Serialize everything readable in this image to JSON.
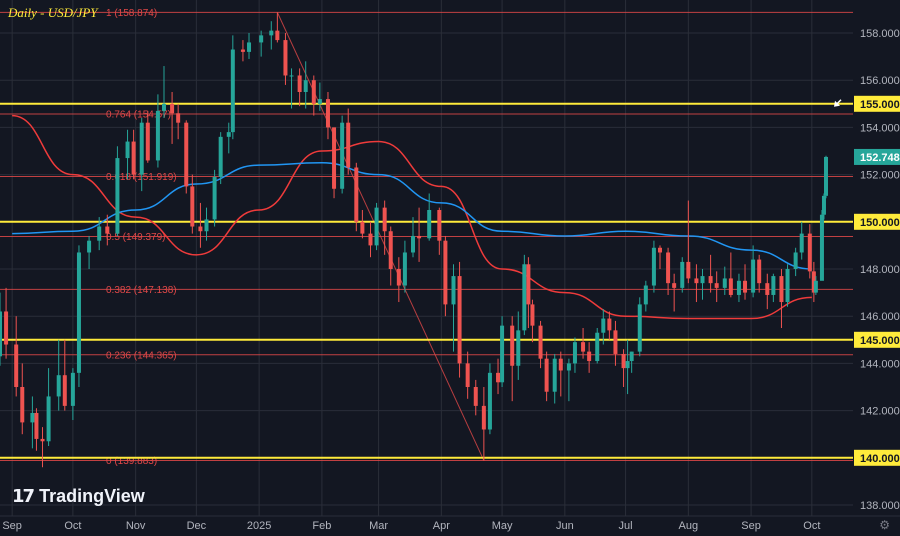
{
  "chart_title": "Daily - USD/JPY",
  "branding": {
    "logo_mark": "17",
    "logo_text": "TradingView"
  },
  "colors": {
    "background": "#131722",
    "grid": "#2a2e39",
    "up": "#26a69a",
    "down": "#ef5350",
    "fib": "#e04848",
    "key_level": "#ffeb3b",
    "ma_fast": "#2196f3",
    "ma_slow": "#ef3b3b",
    "axis_text": "#b2b5be",
    "last_price_bg": "#26a69a"
  },
  "chart_data": {
    "type": "candlestick",
    "symbol": "USD/JPY",
    "timeframe": "Daily",
    "ylim": [
      137.5,
      159.0
    ],
    "y_ticks": [
      138.0,
      140.0,
      142.0,
      144.0,
      146.0,
      148.0,
      150.0,
      152.0,
      154.0,
      156.0,
      158.0
    ],
    "y_tick_labels_hidden_by_markers": [
      140.0,
      150.0
    ],
    "x_tick_labels": [
      "Sep",
      "Oct",
      "Nov",
      "Dec",
      "2025",
      "Feb",
      "Mar",
      "Apr",
      "May",
      "Jun",
      "Jul",
      "Aug",
      "Sep",
      "Oct"
    ],
    "x_tick_dates": [
      "2024-09-01",
      "2024-10-01",
      "2024-11-01",
      "2024-12-01",
      "2025-01-01",
      "2025-02-01",
      "2025-03-01",
      "2025-04-01",
      "2025-05-01",
      "2025-06-01",
      "2025-07-01",
      "2025-08-01",
      "2025-09-01",
      "2025-10-01"
    ],
    "key_levels": [
      {
        "label": "155.000",
        "value": 155.0
      },
      {
        "label": "150.000",
        "value": 150.0
      },
      {
        "label": "145.000",
        "value": 145.0
      },
      {
        "label": "140.000",
        "value": 140.0
      }
    ],
    "last_price": {
      "label": "152.748",
      "value": 152.748
    },
    "fibonacci": [
      {
        "label": "1 (158.874)",
        "value": 158.874
      },
      {
        "label": "0.764 (154.57)",
        "value": 154.57
      },
      {
        "label": "0.618 (151.919)",
        "value": 151.919
      },
      {
        "label": "0.5 (149.379)",
        "value": 149.379
      },
      {
        "label": "0.382 (147.138)",
        "value": 147.138
      },
      {
        "label": "0.236 (144.365)",
        "value": 144.365
      },
      {
        "label": "0 (139.883)",
        "value": 139.883
      }
    ],
    "fib_trendline": {
      "from": {
        "date": "2025-01-10",
        "value": 158.874
      },
      "to": {
        "date": "2025-04-22",
        "value": 139.883
      }
    },
    "moving_average_fast": [
      [
        "2024-09-01",
        149.5
      ],
      [
        "2024-10-01",
        149.6
      ],
      [
        "2024-11-01",
        150.5
      ],
      [
        "2024-12-01",
        151.6
      ],
      [
        "2025-01-01",
        152.4
      ],
      [
        "2025-02-01",
        152.5
      ],
      [
        "2025-03-01",
        152.0
      ],
      [
        "2025-04-01",
        150.8
      ],
      [
        "2025-05-01",
        149.6
      ],
      [
        "2025-06-01",
        149.4
      ],
      [
        "2025-07-01",
        149.6
      ],
      [
        "2025-08-01",
        149.4
      ],
      [
        "2025-09-01",
        148.8
      ],
      [
        "2025-10-01",
        148.0
      ]
    ],
    "moving_average_slow": [
      [
        "2024-09-01",
        154.5
      ],
      [
        "2024-10-01",
        152.0
      ],
      [
        "2024-11-01",
        150.2
      ],
      [
        "2024-12-01",
        148.6
      ],
      [
        "2025-01-01",
        150.5
      ],
      [
        "2025-02-01",
        153.0
      ],
      [
        "2025-03-01",
        153.4
      ],
      [
        "2025-04-01",
        151.5
      ],
      [
        "2025-05-01",
        148.0
      ],
      [
        "2025-06-01",
        147.0
      ],
      [
        "2025-07-01",
        146.0
      ],
      [
        "2025-08-01",
        145.9
      ],
      [
        "2025-09-01",
        145.9
      ],
      [
        "2025-10-01",
        146.8
      ]
    ],
    "candles_ohlc_date_o_h_l_c": [
      [
        "2024-08-26",
        144.3,
        147.0,
        143.9,
        146.2
      ],
      [
        "2024-08-29",
        146.2,
        147.2,
        144.2,
        144.8
      ],
      [
        "2024-09-03",
        144.8,
        146.0,
        142.6,
        143.0
      ],
      [
        "2024-09-06",
        143.0,
        144.0,
        141.0,
        141.5
      ],
      [
        "2024-09-11",
        141.5,
        142.6,
        140.4,
        141.9
      ],
      [
        "2024-09-13",
        141.9,
        142.1,
        140.3,
        140.8
      ],
      [
        "2024-09-16",
        140.8,
        141.3,
        139.6,
        140.7
      ],
      [
        "2024-09-19",
        140.7,
        143.8,
        140.5,
        142.6
      ],
      [
        "2024-09-24",
        142.6,
        145.0,
        142.0,
        143.5
      ],
      [
        "2024-09-27",
        143.5,
        145.0,
        142.0,
        142.2
      ],
      [
        "2024-10-01",
        142.2,
        143.8,
        141.6,
        143.6
      ],
      [
        "2024-10-04",
        143.6,
        149.0,
        143.0,
        148.7
      ],
      [
        "2024-10-09",
        148.7,
        149.4,
        148.0,
        149.2
      ],
      [
        "2024-10-14",
        149.2,
        150.2,
        148.8,
        149.8
      ],
      [
        "2024-10-18",
        149.8,
        150.3,
        149.0,
        149.5
      ],
      [
        "2024-10-23",
        149.5,
        153.2,
        149.4,
        152.7
      ],
      [
        "2024-10-28",
        152.7,
        153.9,
        151.8,
        153.4
      ],
      [
        "2024-10-31",
        153.4,
        153.9,
        151.8,
        152.0
      ],
      [
        "2024-11-04",
        152.0,
        154.4,
        151.3,
        154.2
      ],
      [
        "2024-11-07",
        154.2,
        154.7,
        152.5,
        152.6
      ],
      [
        "2024-11-12",
        152.6,
        155.4,
        152.3,
        154.7
      ],
      [
        "2024-11-15",
        154.7,
        156.6,
        154.4,
        155.0
      ],
      [
        "2024-11-19",
        155.0,
        155.5,
        153.3,
        154.6
      ],
      [
        "2024-11-22",
        154.6,
        155.0,
        153.5,
        154.2
      ],
      [
        "2024-11-26",
        154.2,
        154.3,
        151.2,
        151.5
      ],
      [
        "2024-11-29",
        151.5,
        152.0,
        149.5,
        149.8
      ],
      [
        "2024-12-03",
        149.8,
        150.8,
        148.9,
        149.6
      ],
      [
        "2024-12-06",
        149.6,
        150.6,
        149.2,
        150.1
      ],
      [
        "2024-12-10",
        150.1,
        152.2,
        149.8,
        151.9
      ],
      [
        "2024-12-13",
        151.9,
        153.8,
        151.6,
        153.6
      ],
      [
        "2024-12-17",
        153.6,
        154.2,
        152.9,
        153.8
      ],
      [
        "2024-12-19",
        153.8,
        157.9,
        153.5,
        157.3
      ],
      [
        "2024-12-24",
        157.3,
        157.7,
        156.8,
        157.2
      ],
      [
        "2024-12-27",
        157.2,
        158.0,
        156.9,
        157.6
      ],
      [
        "2025-01-02",
        157.6,
        158.1,
        157.0,
        157.9
      ],
      [
        "2025-01-07",
        157.9,
        158.5,
        157.3,
        158.1
      ],
      [
        "2025-01-10",
        158.1,
        158.874,
        157.6,
        157.7
      ],
      [
        "2025-01-14",
        157.7,
        158.0,
        155.8,
        156.2
      ],
      [
        "2025-01-17",
        156.2,
        156.5,
        154.8,
        156.2
      ],
      [
        "2025-01-21",
        156.2,
        156.5,
        154.9,
        155.5
      ],
      [
        "2025-01-24",
        155.5,
        156.8,
        154.8,
        156.0
      ],
      [
        "2025-01-28",
        156.0,
        156.2,
        154.5,
        155.0
      ],
      [
        "2025-01-31",
        155.0,
        155.9,
        154.7,
        155.2
      ],
      [
        "2025-02-04",
        155.2,
        155.5,
        153.5,
        154.0
      ],
      [
        "2025-02-07",
        154.0,
        154.0,
        151.0,
        151.4
      ],
      [
        "2025-02-11",
        151.4,
        154.5,
        151.2,
        154.2
      ],
      [
        "2025-02-14",
        154.2,
        154.8,
        152.0,
        152.3
      ],
      [
        "2025-02-18",
        152.3,
        152.5,
        149.6,
        150.0
      ],
      [
        "2025-02-21",
        150.0,
        150.5,
        149.3,
        149.5
      ],
      [
        "2025-02-25",
        149.5,
        150.0,
        148.5,
        149.0
      ],
      [
        "2025-02-28",
        149.0,
        150.8,
        148.8,
        150.6
      ],
      [
        "2025-03-04",
        150.6,
        150.9,
        148.6,
        149.6
      ],
      [
        "2025-03-07",
        149.6,
        149.8,
        147.3,
        148.0
      ],
      [
        "2025-03-11",
        148.0,
        148.5,
        146.6,
        147.3
      ],
      [
        "2025-03-14",
        147.3,
        149.2,
        147.0,
        148.7
      ],
      [
        "2025-03-18",
        148.7,
        150.2,
        148.5,
        149.4
      ],
      [
        "2025-03-21",
        149.4,
        150.6,
        148.3,
        149.3
      ],
      [
        "2025-03-26",
        149.3,
        151.2,
        149.2,
        150.5
      ],
      [
        "2025-03-31",
        150.5,
        150.6,
        148.6,
        149.2
      ],
      [
        "2025-04-03",
        149.2,
        149.4,
        146.0,
        146.5
      ],
      [
        "2025-04-07",
        146.5,
        148.2,
        144.5,
        147.7
      ],
      [
        "2025-04-10",
        147.7,
        148.3,
        143.4,
        144.0
      ],
      [
        "2025-04-14",
        144.0,
        144.5,
        142.5,
        143.0
      ],
      [
        "2025-04-18",
        143.0,
        143.3,
        141.8,
        142.2
      ],
      [
        "2025-04-22",
        142.2,
        143.0,
        139.883,
        141.2
      ],
      [
        "2025-04-25",
        141.2,
        144.0,
        141.0,
        143.6
      ],
      [
        "2025-04-29",
        143.6,
        144.2,
        142.7,
        143.2
      ],
      [
        "2025-05-01",
        143.2,
        146.0,
        143.0,
        145.6
      ],
      [
        "2025-05-06",
        145.6,
        146.0,
        142.4,
        143.9
      ],
      [
        "2025-05-09",
        143.9,
        146.2,
        143.3,
        145.4
      ],
      [
        "2025-05-12",
        145.4,
        148.6,
        145.2,
        148.2
      ],
      [
        "2025-05-14",
        148.2,
        148.5,
        145.5,
        146.5
      ],
      [
        "2025-05-16",
        146.5,
        146.7,
        144.9,
        145.6
      ],
      [
        "2025-05-20",
        145.6,
        145.8,
        143.8,
        144.2
      ],
      [
        "2025-05-23",
        144.2,
        144.5,
        142.4,
        142.8
      ],
      [
        "2025-05-27",
        142.8,
        144.4,
        142.3,
        144.2
      ],
      [
        "2025-05-30",
        144.2,
        144.5,
        142.6,
        143.7
      ],
      [
        "2025-06-03",
        143.7,
        144.2,
        142.4,
        144.0
      ],
      [
        "2025-06-06",
        144.0,
        145.1,
        143.6,
        144.9
      ],
      [
        "2025-06-10",
        144.9,
        145.5,
        144.2,
        144.5
      ],
      [
        "2025-06-13",
        144.5,
        144.9,
        143.6,
        144.1
      ],
      [
        "2025-06-17",
        144.1,
        145.5,
        144.0,
        145.3
      ],
      [
        "2025-06-20",
        145.3,
        146.3,
        144.8,
        145.9
      ],
      [
        "2025-06-23",
        145.9,
        146.2,
        145.0,
        145.4
      ],
      [
        "2025-06-26",
        145.4,
        145.8,
        143.9,
        144.4
      ],
      [
        "2025-06-30",
        144.4,
        144.6,
        143.0,
        143.8
      ],
      [
        "2025-07-02",
        143.8,
        145.0,
        142.7,
        144.1
      ],
      [
        "2025-07-04",
        144.1,
        144.5,
        143.6,
        144.5
      ],
      [
        "2025-07-08",
        144.5,
        146.8,
        144.3,
        146.5
      ],
      [
        "2025-07-11",
        146.5,
        147.5,
        146.2,
        147.3
      ],
      [
        "2025-07-15",
        147.3,
        149.2,
        147.0,
        148.9
      ],
      [
        "2025-07-18",
        148.9,
        149.0,
        148.0,
        148.7
      ],
      [
        "2025-07-22",
        148.7,
        148.9,
        146.9,
        147.4
      ],
      [
        "2025-07-25",
        147.4,
        147.8,
        146.2,
        147.2
      ],
      [
        "2025-07-29",
        147.2,
        148.5,
        147.0,
        148.3
      ],
      [
        "2025-08-01",
        148.3,
        150.9,
        147.4,
        147.6
      ],
      [
        "2025-08-05",
        147.6,
        148.2,
        146.6,
        147.4
      ],
      [
        "2025-08-08",
        147.4,
        148.0,
        146.7,
        147.7
      ],
      [
        "2025-08-12",
        147.7,
        148.6,
        147.0,
        147.4
      ],
      [
        "2025-08-15",
        147.4,
        147.9,
        146.6,
        147.2
      ],
      [
        "2025-08-19",
        147.2,
        148.1,
        146.9,
        147.6
      ],
      [
        "2025-08-22",
        147.6,
        148.7,
        146.8,
        146.9
      ],
      [
        "2025-08-26",
        146.9,
        147.8,
        146.6,
        147.5
      ],
      [
        "2025-08-29",
        147.5,
        148.2,
        146.7,
        147.0
      ],
      [
        "2025-09-02",
        147.0,
        149.0,
        146.8,
        148.4
      ],
      [
        "2025-09-05",
        148.4,
        148.6,
        147.0,
        147.4
      ],
      [
        "2025-09-09",
        147.4,
        147.8,
        146.3,
        146.9
      ],
      [
        "2025-09-12",
        146.9,
        147.8,
        146.6,
        147.7
      ],
      [
        "2025-09-16",
        147.7,
        148.0,
        145.5,
        146.6
      ],
      [
        "2025-09-19",
        146.6,
        148.2,
        146.4,
        148.0
      ],
      [
        "2025-09-23",
        148.0,
        148.9,
        147.7,
        148.7
      ],
      [
        "2025-09-26",
        148.7,
        150.0,
        148.4,
        149.5
      ],
      [
        "2025-09-30",
        149.5,
        149.9,
        147.6,
        147.9
      ],
      [
        "2025-10-02",
        147.9,
        148.3,
        146.6,
        147.0
      ],
      [
        "2025-10-03",
        147.0,
        147.7,
        146.9,
        147.5
      ],
      [
        "2025-10-06",
        147.5,
        150.5,
        149.0,
        150.3
      ],
      [
        "2025-10-07",
        150.3,
        151.2,
        150.1,
        151.1
      ],
      [
        "2025-10-08",
        151.1,
        152.8,
        151.0,
        152.748
      ]
    ]
  }
}
